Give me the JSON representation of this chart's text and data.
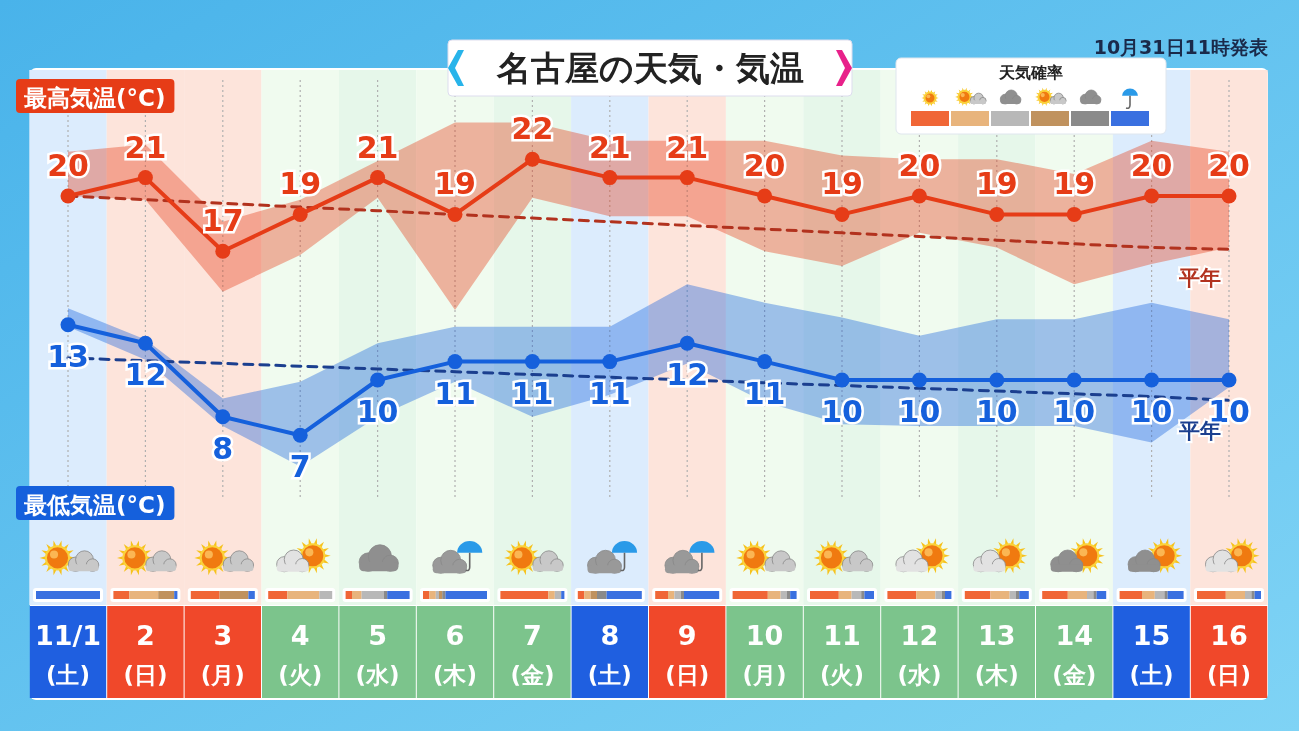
{
  "chart_data": [
    {
      "type": "line",
      "title": "名古屋の天気・気温",
      "annotations": [
        "10月31日11時発表"
      ],
      "categories": [
        "11/1\n(土)",
        "2\n(日)",
        "3\n(月)",
        "4\n(火)",
        "5\n(水)",
        "6\n(木)",
        "7\n(金)",
        "8\n(土)",
        "9\n(日)",
        "10\n(月)",
        "11\n(火)",
        "12\n(水)",
        "13\n(木)",
        "14\n(金)",
        "15\n(土)",
        "16\n(日)"
      ],
      "tick_labels": false,
      "grid": "x",
      "series": [
        {
          "name": "最高気温(°C)",
          "color": "#e63c17",
          "marker": "circle",
          "values": [
            20,
            21,
            17,
            19,
            21,
            19,
            22,
            21,
            21,
            20,
            19,
            20,
            19,
            19,
            20,
            20
          ],
          "value_labels": [
            "20",
            "21",
            "17",
            "19",
            "21",
            "19",
            "22",
            "21",
            "21",
            "20",
            "19",
            "20",
            "19",
            "19",
            "20",
            "20"
          ],
          "lower": [
            20,
            19.8,
            14.8,
            16.8,
            19.9,
            13.8,
            19.9,
            18.9,
            18.9,
            17,
            16.2,
            18,
            17.2,
            15.2,
            16.3,
            17.2
          ],
          "upper": [
            22.4,
            22.8,
            18.6,
            19.8,
            21.9,
            24,
            24,
            23,
            23,
            23,
            22.2,
            22,
            22,
            21.2,
            23,
            22.4
          ]
        },
        {
          "name": "平年",
          "color": "#b2321e",
          "line_style": "dashed",
          "marker": "none",
          "values": [
            20,
            19.8,
            19.6,
            19.4,
            19.2,
            19,
            18.8,
            18.6,
            18.4,
            18.2,
            18,
            17.8,
            17.6,
            17.4,
            17.2,
            17.1
          ]
        },
        {
          "name": "最低気温(°C)",
          "color": "#1560dc",
          "marker": "circle",
          "values": [
            13,
            12,
            8,
            7,
            10,
            11,
            11,
            11,
            12,
            11,
            10,
            10,
            10,
            10,
            10,
            10
          ],
          "value_labels": [
            "13",
            "12",
            "8",
            "7",
            "10",
            "11",
            "11",
            "11",
            "12",
            "11",
            "10",
            "10",
            "10",
            "10",
            "10",
            "10"
          ],
          "lower": [
            12.9,
            11.1,
            7.5,
            5.3,
            8,
            9.9,
            8,
            9.2,
            10.9,
            8.8,
            7.6,
            7.5,
            7.5,
            7.5,
            6.6,
            9.6
          ],
          "upper": [
            13.9,
            12.2,
            9,
            9.9,
            12,
            12.9,
            12.9,
            12.9,
            15.2,
            14.2,
            13.4,
            12.4,
            13.3,
            13.3,
            14.2,
            13.3
          ]
        },
        {
          "name": "平年",
          "color": "#1b3f8f",
          "line_style": "dashed",
          "marker": "none",
          "values": [
            11.2,
            11.05,
            10.9,
            10.75,
            10.6,
            10.45,
            10.3,
            10.15,
            10,
            9.85,
            9.7,
            9.55,
            9.4,
            9.25,
            9.1,
            8.9
          ]
        }
      ]
    },
    {
      "type": "other",
      "title": "天気確率"
    }
  ]
}
